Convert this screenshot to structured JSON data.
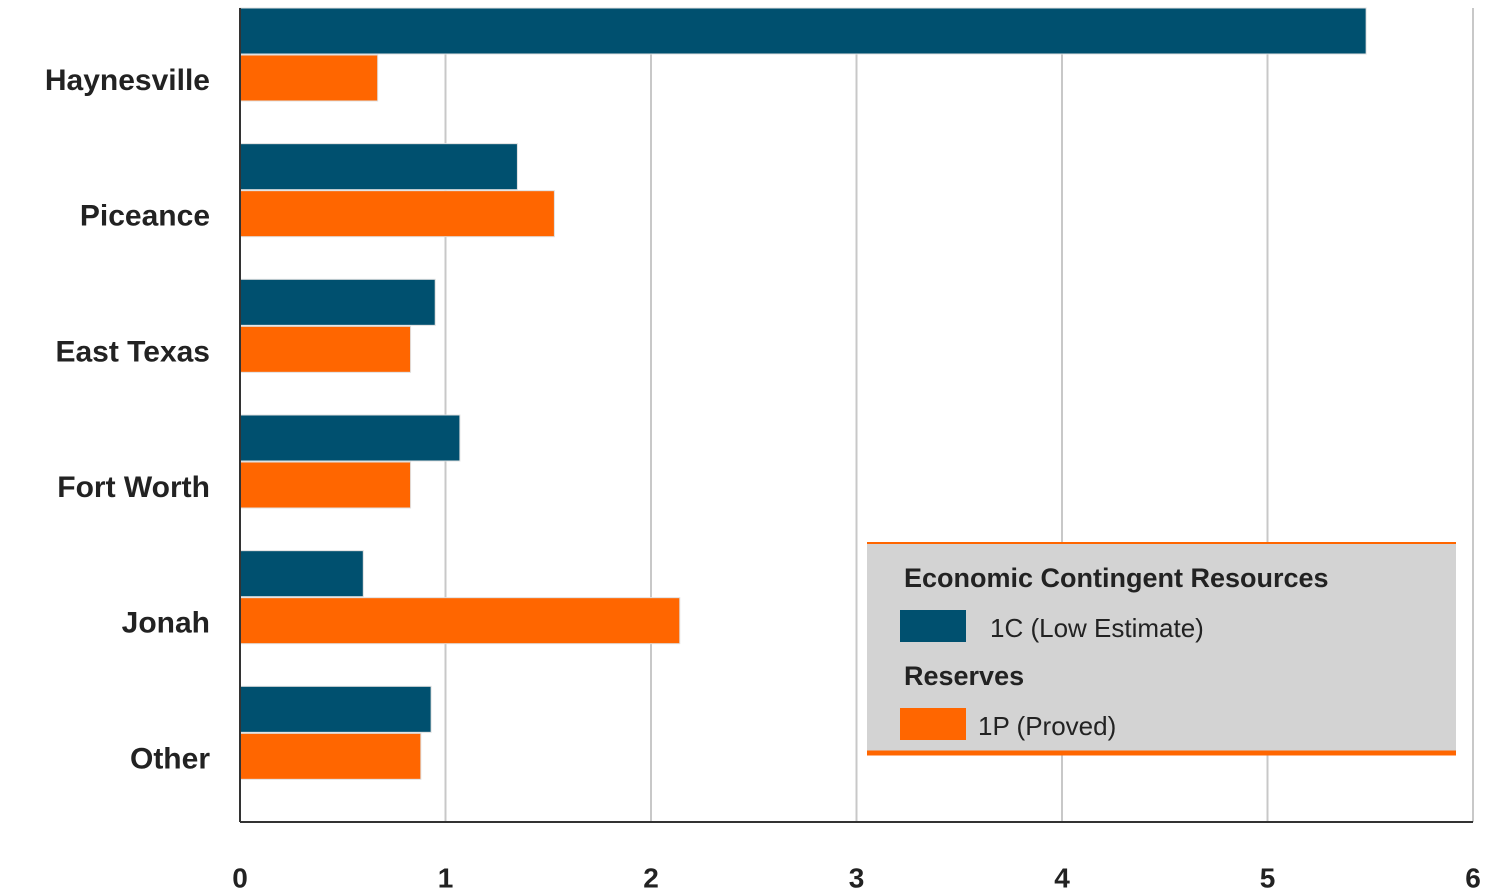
{
  "chart_data": {
    "type": "bar",
    "orientation": "horizontal",
    "categories": [
      "Haynesville",
      "Piceance",
      "East Texas",
      "Fort Worth",
      "Jonah",
      "Other"
    ],
    "series": [
      {
        "name": "1C (Low Estimate)",
        "color": "#00506f",
        "values": [
          5.48,
          1.35,
          0.95,
          1.07,
          0.6,
          0.93
        ]
      },
      {
        "name": "1P (Proved)",
        "color": "#ff6600",
        "values": [
          0.67,
          1.53,
          0.83,
          0.83,
          2.14,
          0.88
        ]
      }
    ],
    "legend_titles": [
      "Economic Contingent Resources",
      "Reserves"
    ],
    "xlim": [
      0,
      6
    ],
    "xticks": [
      0,
      1,
      2,
      3,
      4,
      5,
      6
    ],
    "grid": true,
    "legend": "lower right"
  }
}
